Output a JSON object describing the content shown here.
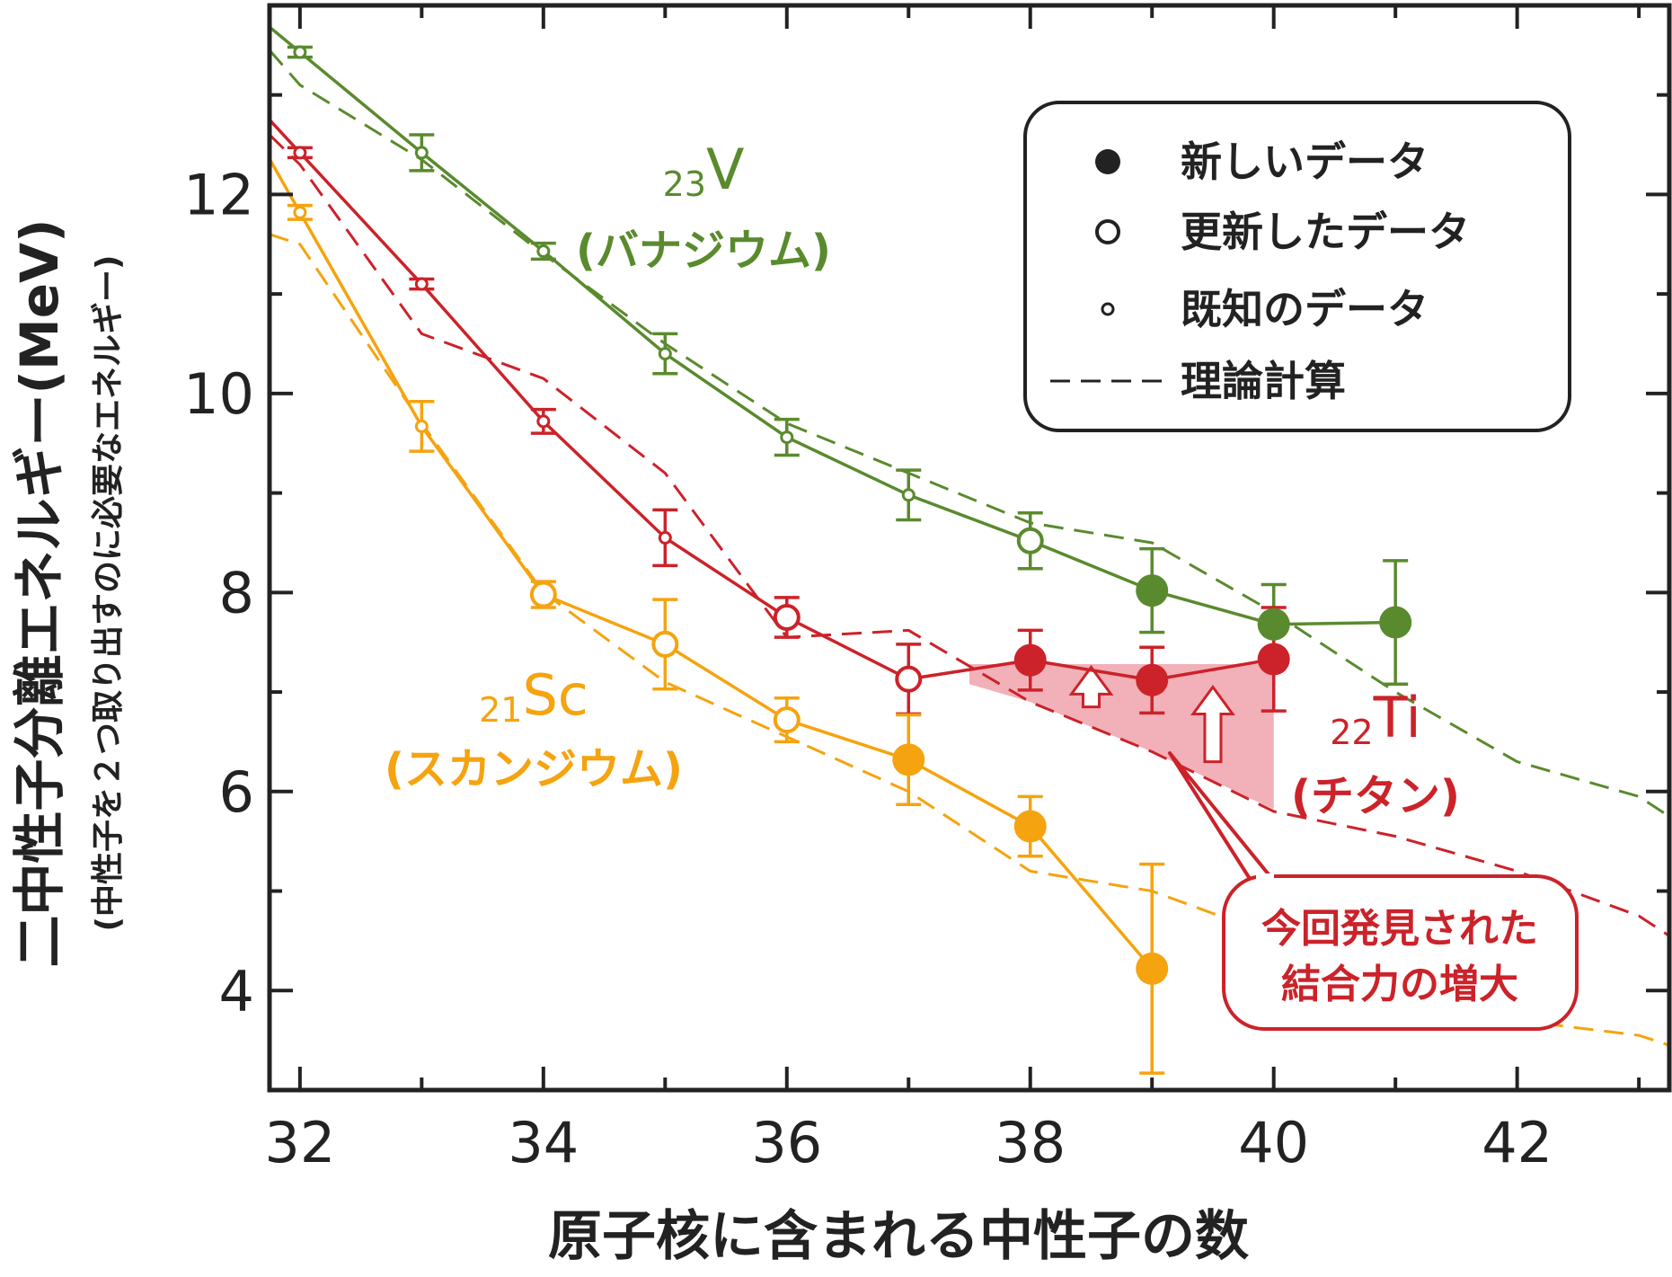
{
  "chart_data": {
    "type": "line",
    "xlabel": "原子核に含まれる中性子の数",
    "ylabel": "二中性子分離エネルギー(MeV)",
    "ylabel_sub": "(中性子を２つ取り出すのに必要なエネルギー)",
    "xlim": [
      31.75,
      43.25
    ],
    "ylim": [
      3.0,
      13.9
    ],
    "xticks": [
      32,
      34,
      36,
      38,
      40,
      42
    ],
    "xtick_labels": [
      "32",
      "34",
      "36",
      "38",
      "40",
      "42"
    ],
    "yticks": [
      4,
      6,
      8,
      10,
      12
    ],
    "ytick_labels": [
      "4",
      "6",
      "8",
      "10",
      "12"
    ],
    "grid": false,
    "colors": {
      "V": "#5a8a2e",
      "Ti": "#cc2229",
      "Sc": "#f5a30f",
      "shade": "#f1a7b0",
      "axis": "#222222"
    },
    "series": [
      {
        "key": "V",
        "points": [
          {
            "x": 32,
            "y": 13.43,
            "err": 0.05,
            "kind": "known"
          },
          {
            "x": 33,
            "y": 12.42,
            "err": 0.18,
            "kind": "known"
          },
          {
            "x": 34,
            "y": 11.43,
            "err": 0.08,
            "kind": "known"
          },
          {
            "x": 35,
            "y": 10.4,
            "err": 0.2,
            "kind": "known"
          },
          {
            "x": 36,
            "y": 9.56,
            "err": 0.18,
            "kind": "known"
          },
          {
            "x": 37,
            "y": 8.98,
            "err": 0.25,
            "kind": "known"
          },
          {
            "x": 38,
            "y": 8.52,
            "err": 0.28,
            "kind": "updated"
          },
          {
            "x": 39,
            "y": 8.02,
            "err": 0.42,
            "kind": "new"
          },
          {
            "x": 40,
            "y": 7.68,
            "err": 0.4,
            "kind": "new"
          },
          {
            "x": 41,
            "y": 7.7,
            "err": 0.62,
            "kind": "new"
          }
        ],
        "theory": {
          "x": [
            31.75,
            32,
            33,
            34,
            35,
            36,
            37,
            38,
            39,
            40,
            41,
            42,
            43,
            43.25
          ],
          "y": [
            13.45,
            13.1,
            12.35,
            11.4,
            10.5,
            9.7,
            9.2,
            8.7,
            8.5,
            7.8,
            7.0,
            6.3,
            5.95,
            5.75
          ]
        }
      },
      {
        "key": "Ti",
        "points": [
          {
            "x": 32,
            "y": 12.42,
            "err": 0.05,
            "kind": "known"
          },
          {
            "x": 33,
            "y": 11.1,
            "err": 0.05,
            "kind": "known"
          },
          {
            "x": 34,
            "y": 9.72,
            "err": 0.12,
            "kind": "known"
          },
          {
            "x": 35,
            "y": 8.55,
            "err": 0.28,
            "kind": "known"
          },
          {
            "x": 36,
            "y": 7.75,
            "err": 0.2,
            "kind": "updated"
          },
          {
            "x": 37,
            "y": 7.13,
            "err": 0.35,
            "kind": "updated"
          },
          {
            "x": 38,
            "y": 7.32,
            "err": 0.3,
            "kind": "new"
          },
          {
            "x": 39,
            "y": 7.12,
            "err": 0.33,
            "kind": "new"
          },
          {
            "x": 40,
            "y": 7.33,
            "err": 0.52,
            "kind": "new"
          }
        ],
        "theory": {
          "x": [
            31.75,
            32,
            33,
            34,
            35,
            36,
            37,
            38,
            39,
            40,
            41,
            42,
            43,
            43.25
          ],
          "y": [
            12.6,
            12.3,
            10.6,
            10.15,
            9.2,
            7.55,
            7.62,
            6.9,
            6.4,
            5.8,
            5.55,
            5.2,
            4.75,
            4.55
          ]
        }
      },
      {
        "key": "Sc",
        "points": [
          {
            "x": 32,
            "y": 11.82,
            "err": 0.07,
            "kind": "known"
          },
          {
            "x": 33,
            "y": 9.67,
            "err": 0.25,
            "kind": "known"
          },
          {
            "x": 34,
            "y": 7.98,
            "err": 0.13,
            "kind": "updated"
          },
          {
            "x": 35,
            "y": 7.48,
            "err": 0.45,
            "kind": "updated"
          },
          {
            "x": 36,
            "y": 6.72,
            "err": 0.22,
            "kind": "updated"
          },
          {
            "x": 37,
            "y": 6.32,
            "err": 0.45,
            "kind": "new"
          },
          {
            "x": 38,
            "y": 5.65,
            "err": 0.3,
            "kind": "new"
          },
          {
            "x": 39,
            "y": 4.22,
            "err": 1.05,
            "kind": "new"
          }
        ],
        "theory": {
          "x": [
            31.75,
            32,
            33,
            34,
            35,
            36,
            37,
            38,
            39,
            40,
            41,
            42,
            43,
            43.25
          ],
          "y": [
            11.6,
            11.5,
            9.7,
            8.0,
            7.1,
            6.55,
            6.0,
            5.2,
            5.0,
            4.55,
            4.2,
            3.7,
            3.55,
            3.45
          ]
        }
      }
    ],
    "shaded_region": [
      [
        37.5,
        7.28
      ],
      [
        40,
        7.28
      ],
      [
        40,
        5.82
      ],
      [
        39,
        6.4
      ],
      [
        38,
        6.9
      ],
      [
        37.5,
        7.08
      ]
    ],
    "arrows": [
      [
        38.5,
        6.85,
        7.25
      ],
      [
        39.5,
        6.3,
        7.05
      ]
    ],
    "labels": {
      "V": {
        "sub": "23",
        "sym": "V",
        "name": "(バナジウム)"
      },
      "Ti": {
        "sub": "22",
        "sym": "Ti",
        "name": "(チタン)"
      },
      "Sc": {
        "sub": "21",
        "sym": "Sc",
        "name": "(スカンジウム)"
      }
    },
    "legend": {
      "position": "top-right",
      "entries": [
        {
          "marker": "new",
          "label": "新しいデータ"
        },
        {
          "marker": "updated",
          "label": "更新したデータ"
        },
        {
          "marker": "known",
          "label": "既知のデータ"
        },
        {
          "marker": "theory",
          "label": "理論計算"
        }
      ]
    },
    "annotation": {
      "lines": [
        "今回発見された",
        "結合力の増大"
      ]
    }
  }
}
